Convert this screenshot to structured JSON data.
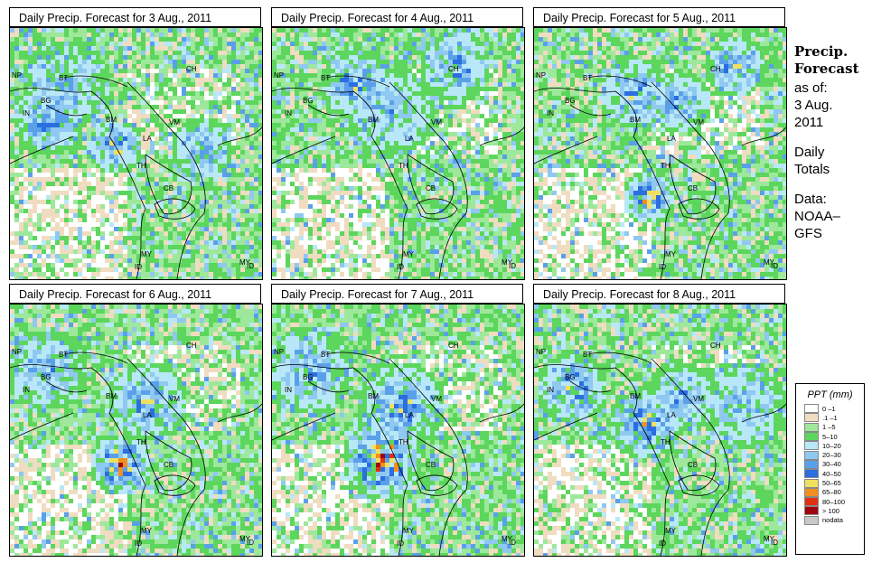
{
  "panels": [
    {
      "title": "Daily Precip. Forecast for  3 Aug., 2011"
    },
    {
      "title": "Daily Precip. Forecast for  4 Aug., 2011"
    },
    {
      "title": "Daily Precip. Forecast for  5 Aug., 2011"
    },
    {
      "title": "Daily Precip. Forecast for  6 Aug., 2011"
    },
    {
      "title": "Daily Precip. Forecast for  7 Aug., 2011"
    },
    {
      "title": "Daily Precip. Forecast for  8 Aug., 2011"
    }
  ],
  "map_labels": [
    "NP",
    "BT",
    "BG",
    "IN",
    "BM",
    "CH",
    "VM",
    "LA",
    "TH",
    "CB",
    "MY",
    "MY",
    "ID",
    "ID"
  ],
  "side": {
    "title_line1": "Precip.",
    "title_line2": "Forecast",
    "asof": "as of:",
    "date_line1": "3 Aug.",
    "date_line2": "2011",
    "daily_line1": "Daily",
    "daily_line2": "Totals",
    "data_line1": "Data:",
    "data_line2": "NOAA–",
    "data_line3": "GFS"
  },
  "legend": {
    "title": "PPT (mm)",
    "items": [
      {
        "label": "0 –1",
        "color": "#ffffff"
      },
      {
        "label": ".1 –1",
        "color": "#f0dcc0"
      },
      {
        "label": "1 –5",
        "color": "#9de89b"
      },
      {
        "label": "5–10",
        "color": "#5cd65c"
      },
      {
        "label": "10–20",
        "color": "#b8e8f8"
      },
      {
        "label": "20–30",
        "color": "#8fc8f0"
      },
      {
        "label": "30–40",
        "color": "#5aa0e8"
      },
      {
        "label": "40–50",
        "color": "#2a6ee0"
      },
      {
        "label": "50–65",
        "color": "#f0e060"
      },
      {
        "label": "65–80",
        "color": "#f09020"
      },
      {
        "label": "80–100",
        "color": "#e03010"
      },
      {
        "label": "> 100",
        "color": "#a00010"
      },
      {
        "label": "nodata",
        "color": "#c8c8c8"
      }
    ]
  }
}
